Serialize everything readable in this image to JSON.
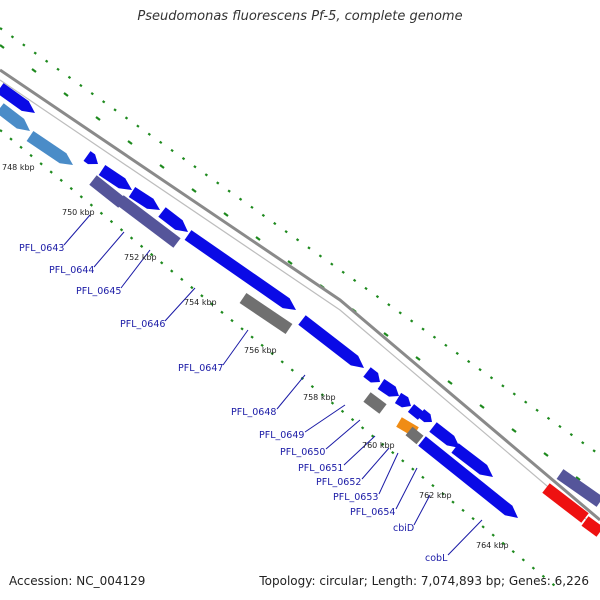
{
  "title": "Pseudomonas fluorescens Pf-5, complete genome",
  "accession": "Accession: NC_004129",
  "topology": "Topology: circular; Length: 7,074,893 bp; Genes: 6,226",
  "colors": {
    "backbone": "#8a8a8a",
    "forward_gene": "#0a0ae6",
    "reverse_gene": "#55559a",
    "light_blue_gene": "#4a8cc8",
    "gray_gene": "#707070",
    "orange_gene": "#f08c14",
    "red_gene": "#ee1111",
    "tick": "#1e8a1e",
    "label": "#1a1aa6"
  },
  "kbp_labels": [
    "748 kbp",
    "750 kbp",
    "752 kbp",
    "754 kbp",
    "756 kbp",
    "758 kbp",
    "760 kbp",
    "762 kbp",
    "764 kbp"
  ],
  "gene_labels": [
    "PFL_0643",
    "PFL_0644",
    "PFL_0645",
    "PFL_0646",
    "PFL_0647",
    "PFL_0648",
    "PFL_0649",
    "PFL_0650",
    "PFL_0651",
    "PFL_0652",
    "PFL_0653",
    "PFL_0654",
    "cbiD",
    "cobL"
  ]
}
